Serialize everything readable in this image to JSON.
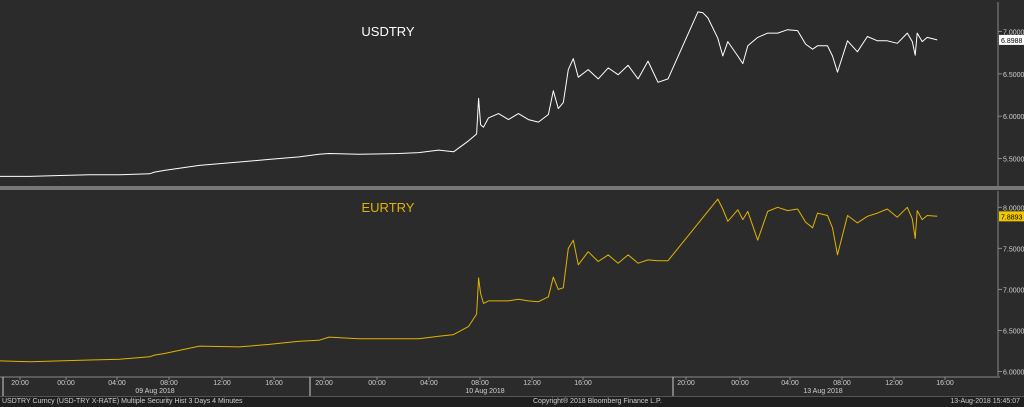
{
  "chart_data": [
    {
      "type": "line",
      "title": "USDTRY",
      "series": [
        {
          "name": "USDTRY"
        }
      ],
      "color": "#ffffff",
      "last_value": "6.8988",
      "ylim": [
        5.2,
        7.3
      ],
      "y_ticks": [
        "5.5000",
        "6.0000",
        "6.5000",
        "7.0000"
      ],
      "y_tick_values": [
        5.5,
        6.0,
        6.5,
        7.0
      ],
      "grid": false,
      "x": [
        0,
        30,
        60,
        90,
        120,
        150,
        155,
        165,
        200,
        240,
        270,
        300,
        320,
        330,
        360,
        400,
        420,
        440,
        455,
        470,
        478,
        480,
        482,
        485,
        490,
        500,
        510,
        520,
        530,
        540,
        550,
        555,
        560,
        565,
        570,
        575,
        580,
        590,
        600,
        610,
        620,
        630,
        640,
        650,
        660,
        670,
        700,
        705,
        710,
        720,
        725,
        730,
        740,
        745,
        750,
        760,
        770,
        780,
        790,
        800,
        808,
        815,
        820,
        830,
        835,
        840,
        850,
        860,
        870,
        880,
        890,
        900,
        910,
        915,
        918,
        920,
        925,
        930,
        940
      ],
      "values": [
        5.29,
        5.29,
        5.3,
        5.31,
        5.31,
        5.32,
        5.34,
        5.36,
        5.42,
        5.46,
        5.49,
        5.52,
        5.55,
        5.56,
        5.55,
        5.56,
        5.57,
        5.6,
        5.58,
        5.71,
        5.79,
        6.21,
        5.9,
        5.87,
        5.98,
        6.03,
        5.96,
        6.03,
        5.96,
        5.93,
        6.02,
        6.3,
        6.09,
        6.16,
        6.55,
        6.68,
        6.46,
        6.55,
        6.44,
        6.57,
        6.49,
        6.6,
        6.44,
        6.65,
        6.4,
        6.44,
        7.23,
        7.22,
        7.16,
        6.92,
        6.71,
        6.88,
        6.71,
        6.62,
        6.83,
        6.93,
        6.98,
        6.98,
        7.02,
        7.01,
        6.85,
        6.79,
        6.83,
        6.83,
        6.71,
        6.52,
        6.89,
        6.76,
        6.94,
        6.89,
        6.89,
        6.86,
        6.98,
        6.88,
        6.72,
        6.98,
        6.88,
        6.93,
        6.9
      ]
    },
    {
      "type": "line",
      "title": "EURTRY",
      "series": [
        {
          "name": "EURTRY"
        }
      ],
      "color": "#e0b400",
      "last_value": "7.8893",
      "ylim": [
        5.97,
        8.15
      ],
      "y_ticks": [
        "6.0000",
        "6.5000",
        "7.0000",
        "7.5000",
        "8.0000"
      ],
      "y_tick_values": [
        6.0,
        6.5,
        7.0,
        7.5,
        8.0
      ],
      "grid": false,
      "x": [
        0,
        30,
        60,
        90,
        120,
        150,
        155,
        165,
        200,
        240,
        270,
        300,
        320,
        330,
        360,
        400,
        420,
        440,
        455,
        470,
        478,
        480,
        482,
        485,
        490,
        500,
        510,
        520,
        530,
        540,
        550,
        555,
        560,
        565,
        570,
        575,
        580,
        590,
        600,
        610,
        620,
        630,
        640,
        650,
        660,
        670,
        720,
        725,
        730,
        740,
        745,
        750,
        760,
        770,
        780,
        790,
        800,
        808,
        815,
        820,
        830,
        835,
        840,
        850,
        860,
        870,
        880,
        890,
        900,
        910,
        915,
        918,
        920,
        925,
        930,
        940
      ],
      "values": [
        6.13,
        6.12,
        6.13,
        6.14,
        6.15,
        6.18,
        6.2,
        6.22,
        6.31,
        6.3,
        6.33,
        6.37,
        6.38,
        6.42,
        6.4,
        6.4,
        6.4,
        6.43,
        6.45,
        6.55,
        6.7,
        7.14,
        6.95,
        6.83,
        6.86,
        6.86,
        6.86,
        6.88,
        6.86,
        6.85,
        6.91,
        7.15,
        7.0,
        7.02,
        7.5,
        7.6,
        7.3,
        7.46,
        7.34,
        7.42,
        7.32,
        7.42,
        7.32,
        7.36,
        7.35,
        7.35,
        8.1,
        7.98,
        7.83,
        7.97,
        7.85,
        7.95,
        7.6,
        7.95,
        8.0,
        7.96,
        7.98,
        7.82,
        7.75,
        7.93,
        7.9,
        7.75,
        7.42,
        7.9,
        7.81,
        7.89,
        7.93,
        7.98,
        7.88,
        8.0,
        7.86,
        7.62,
        7.96,
        7.85,
        7.9,
        7.89
      ]
    }
  ],
  "x_axis": {
    "ticks": [
      "20:00",
      "00:00",
      "04:00",
      "08:00",
      "12:00",
      "16:00",
      "20:00",
      "00:00",
      "04:00",
      "08:00",
      "12:00",
      "16:00",
      "20:00",
      "00:00",
      "04:00",
      "08:00",
      "12:00",
      "16:00"
    ],
    "dates": [
      "09 Aug 2018",
      "10 Aug 2018",
      "13 Aug 2018"
    ]
  },
  "footer": {
    "left": "USDTRY Curncy (USD-TRY X-RATE) Multiple Security Hist  3 Days 4 Minutes",
    "center": "Copyright® 2018 Bloomberg Finance L.P.",
    "right": "13-Aug-2018 15:45:07"
  }
}
